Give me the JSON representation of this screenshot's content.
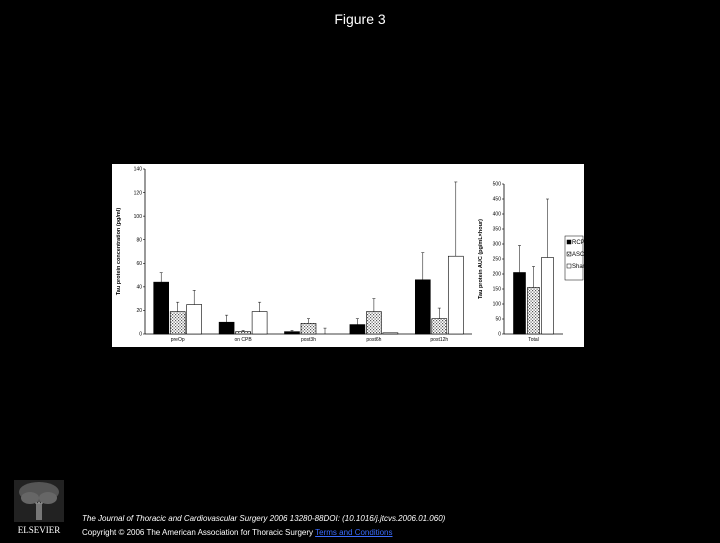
{
  "slide_title": "Figure 3",
  "footer": {
    "citation": "The Journal of Thoracic and Cardiovascular Surgery 2006 13280-88DOI: (10.1016/j.jtcvs.2006.01.060)",
    "copyright": "Copyright © 2006 The American Association for Thoracic Surgery",
    "terms_link": "Terms and Conditions",
    "logo_text": "ELSEVIER"
  },
  "colors": {
    "rcp_inf": "#000000",
    "ascp": "#c8c8c8",
    "sham": "#ffffff"
  },
  "chart_data": [
    {
      "type": "bar",
      "ylabel": "Tau protein concentration (pg/ml)",
      "ylim": [
        0,
        140
      ],
      "yticks": [
        0,
        20,
        40,
        60,
        80,
        100,
        120,
        140
      ],
      "categories": [
        "preOp",
        "on CPB",
        "post3h",
        "post6h",
        "post12h"
      ],
      "series": [
        {
          "name": "RCP-INF",
          "values": [
            44,
            10,
            2,
            8,
            46
          ],
          "errors": [
            8,
            6,
            1,
            5,
            23
          ]
        },
        {
          "name": "ASCP",
          "values": [
            19,
            2,
            9,
            19,
            13
          ],
          "errors": [
            8,
            1,
            4,
            11,
            9
          ]
        },
        {
          "name": "Sham",
          "values": [
            25,
            19,
            0,
            1,
            66
          ],
          "errors": [
            12,
            8,
            5,
            0,
            63
          ]
        }
      ],
      "legend": "none"
    },
    {
      "type": "bar",
      "ylabel": "Tau protein AUC (pg/mL×hour)",
      "ylim": [
        0,
        500
      ],
      "yticks": [
        0,
        50,
        100,
        150,
        200,
        250,
        300,
        350,
        400,
        450,
        500
      ],
      "categories": [
        "Total"
      ],
      "series": [
        {
          "name": "RCP-INF",
          "values": [
            205
          ],
          "errors": [
            90
          ]
        },
        {
          "name": "ASCP",
          "values": [
            155
          ],
          "errors": [
            70
          ]
        },
        {
          "name": "Sham",
          "values": [
            255
          ],
          "errors": [
            195
          ]
        }
      ],
      "legend": "right"
    }
  ],
  "legend_labels": [
    "RCP-INF",
    "ASCP",
    "Sham"
  ]
}
